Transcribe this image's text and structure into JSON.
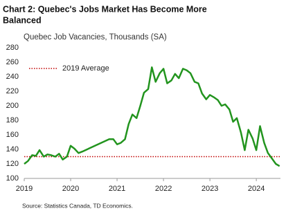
{
  "chart_data": {
    "type": "line",
    "title": [
      "Chart 2: Quebec's Jobs Market Has Become More",
      "Balanced"
    ],
    "subtitle": "Quebec Job Vacancies, Thousands (SA)",
    "source": "Source: Statistics Canada, TD Economics.",
    "color": "#22941e",
    "x": [
      2019.0,
      2019.08,
      2019.17,
      2019.25,
      2019.33,
      2019.42,
      2019.5,
      2019.58,
      2019.67,
      2019.75,
      2019.83,
      2019.92,
      2020.0,
      2020.08,
      2020.17,
      2020.25,
      2020.83,
      2020.92,
      2021.0,
      2021.08,
      2021.17,
      2021.25,
      2021.33,
      2021.42,
      2021.5,
      2021.58,
      2021.67,
      2021.75,
      2021.83,
      2021.92,
      2022.0,
      2022.08,
      2022.17,
      2022.25,
      2022.33,
      2022.42,
      2022.5,
      2022.58,
      2022.67,
      2022.75,
      2022.83,
      2022.92,
      2023.0,
      2023.08,
      2023.17,
      2023.25,
      2023.33,
      2023.42,
      2023.5,
      2023.58,
      2023.67,
      2023.75,
      2023.83,
      2023.92,
      2024.0,
      2024.08,
      2024.17,
      2024.25,
      2024.33,
      2024.42,
      2024.5
    ],
    "values": [
      120,
      124,
      132,
      131,
      139,
      130,
      133,
      132,
      130,
      134,
      126,
      130,
      145,
      141,
      135,
      137,
      154,
      154,
      147,
      149,
      154,
      175,
      188,
      183,
      200,
      218,
      223,
      253,
      233,
      245,
      251,
      231,
      235,
      244,
      238,
      251,
      249,
      245,
      233,
      231,
      217,
      209,
      215,
      212,
      208,
      200,
      202,
      195,
      178,
      183,
      163,
      139,
      167,
      155,
      139,
      172,
      149,
      135,
      128,
      120,
      117
    ],
    "reference_line": {
      "label": "2019 Average",
      "value": 130,
      "color": "#c00000"
    },
    "xlim": [
      2019,
      2024.52
    ],
    "xticks": [
      2019,
      2020,
      2021,
      2022,
      2023,
      2024
    ],
    "ylim": [
      100,
      280
    ],
    "yticks": [
      100,
      120,
      140,
      160,
      180,
      200,
      220,
      240,
      260,
      280
    ]
  }
}
